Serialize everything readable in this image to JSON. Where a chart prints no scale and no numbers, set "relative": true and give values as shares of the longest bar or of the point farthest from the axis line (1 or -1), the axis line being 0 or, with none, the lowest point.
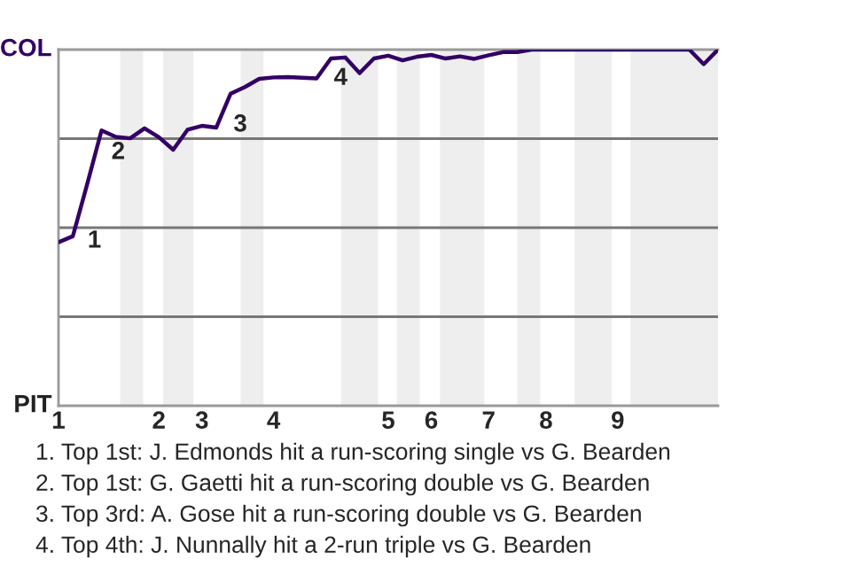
{
  "chart_data": {
    "type": "line",
    "relative": true,
    "categories": [
      "1",
      null,
      null,
      null,
      null,
      null,
      null,
      "2",
      null,
      null,
      "3",
      null,
      null,
      null,
      null,
      "4",
      null,
      null,
      null,
      null,
      null,
      null,
      null,
      "5",
      null,
      null,
      "6",
      null,
      null,
      null,
      "7",
      null,
      null,
      null,
      "8",
      null,
      null,
      null,
      null,
      "9",
      null,
      null,
      null,
      null,
      null,
      null,
      null
    ],
    "series": [
      {
        "color": "#330066",
        "values": [
          0.459,
          0.476,
          0.622,
          0.773,
          0.755,
          0.751,
          0.779,
          0.754,
          0.719,
          0.775,
          0.786,
          0.781,
          0.876,
          0.895,
          0.918,
          0.922,
          0.923,
          0.921,
          0.919,
          0.975,
          0.978,
          0.934,
          0.975,
          0.983,
          0.97,
          0.98,
          0.985,
          0.975,
          0.981,
          0.974,
          0.984,
          0.993,
          0.993,
          1,
          1,
          1,
          1,
          1,
          1,
          1,
          1,
          1,
          1,
          1,
          1,
          0.959,
          1
        ]
      }
    ],
    "ref_lines": [
      {
        "axis": "y",
        "value": 0.25,
        "color": "#777777"
      },
      {
        "axis": "y",
        "value": 0.5,
        "color": "#777777"
      },
      {
        "axis": "y",
        "value": 0.75,
        "color": "#777777"
      }
    ],
    "annotations": [
      "COL",
      "PIT",
      "1",
      "2",
      "3",
      "4",
      "1. Top 1st: J. Edmonds hit a run-scoring single vs G. Bearden",
      "2. Top 1st: G. Gaetti hit a run-scoring double vs G. Bearden",
      "3. Top 3rd: A. Gose hit a run-scoring double vs G. Bearden",
      "4. Top 4th: J. Nunnally hit a 2-run triple vs G. Bearden"
    ]
  }
}
